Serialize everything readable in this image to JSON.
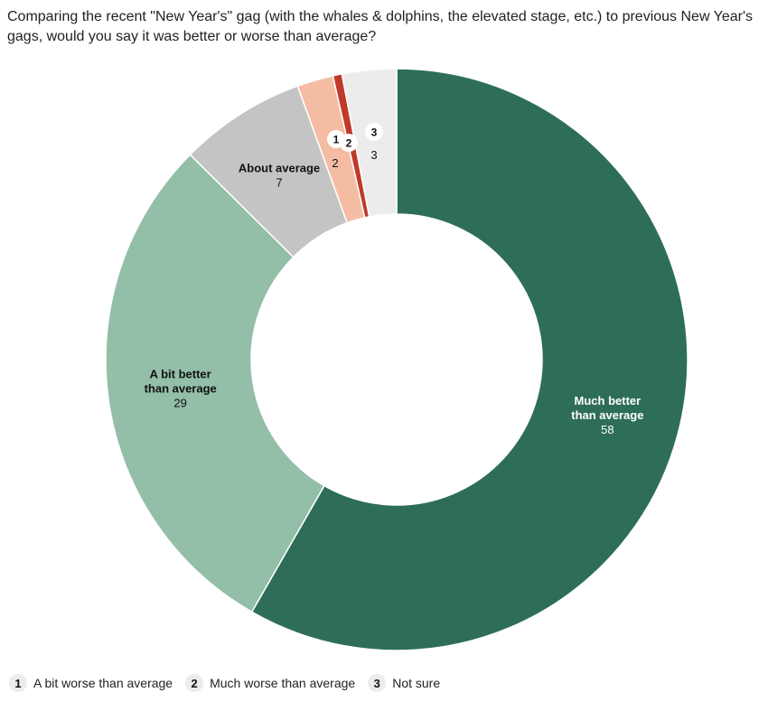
{
  "chart_data": {
    "type": "pie",
    "donut": true,
    "title": "Comparing the recent \"New Year's\" gag (with the whales & dolphins, the elevated stage, etc.) to previous New Year's gags, would you say it was better or worse than average?",
    "slices": [
      {
        "label": "Much better than average",
        "value": 58,
        "color": "#2e6e58",
        "label_lines": [
          "Much better",
          "than average"
        ],
        "label_color": "#ffffff"
      },
      {
        "label": "A bit better than average",
        "value": 29,
        "color": "#93bea8",
        "label_lines": [
          "A bit better",
          "than average"
        ],
        "label_color": "#111111"
      },
      {
        "label": "About average",
        "value": 7,
        "color": "#c4c4c4",
        "label_lines": [
          "About average"
        ],
        "label_color": "#111111"
      },
      {
        "label": "A bit worse than average",
        "value": 2,
        "color": "#f4bda3",
        "badge": "1",
        "label_color": "#111111"
      },
      {
        "label": "Much worse than average",
        "value": 0.5,
        "color": "#c0392b",
        "badge": "2",
        "label_color": "#111111"
      },
      {
        "label": "Not sure",
        "value": 3,
        "color": "#ececec",
        "badge": "3",
        "label_color": "#111111"
      }
    ],
    "value_labels": [
      "58",
      "29",
      "7",
      "2",
      "3"
    ],
    "legend": [
      {
        "badge": "1",
        "label": "A bit worse than average"
      },
      {
        "badge": "2",
        "label": "Much worse than average"
      },
      {
        "badge": "3",
        "label": "Not sure"
      }
    ]
  }
}
